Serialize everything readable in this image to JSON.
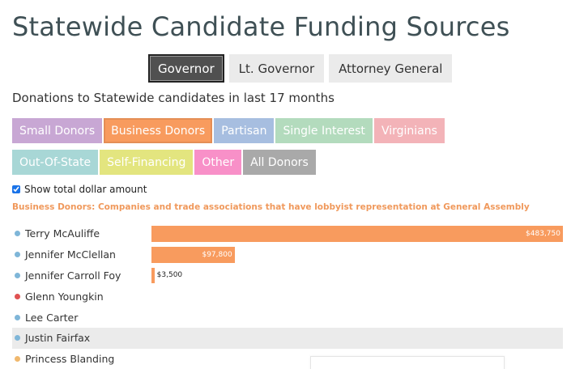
{
  "page": {
    "title": "Statewide Candidate Funding Sources",
    "subtitle": "Donations to Statewide candidates in last 17 months"
  },
  "tabs": [
    {
      "label": "Governor",
      "active": true
    },
    {
      "label": "Lt. Governor",
      "active": false
    },
    {
      "label": "Attorney General",
      "active": false
    }
  ],
  "categories": [
    {
      "label": "Small Donors",
      "color": "#c8a7d4",
      "active": false
    },
    {
      "label": "Business Donors",
      "color": "#f89b5e",
      "active": true
    },
    {
      "label": "Partisan",
      "color": "#a7bee0",
      "active": false
    },
    {
      "label": "Single Interest",
      "color": "#b3dbbd",
      "active": false
    },
    {
      "label": "Virginians",
      "color": "#f3b3b8",
      "active": false
    },
    {
      "label": "Out-Of-State",
      "color": "#a8d7d6",
      "active": false
    },
    {
      "label": "Self-Financing",
      "color": "#e3e57f",
      "active": false
    },
    {
      "label": "Other",
      "color": "#f890c8",
      "active": false
    },
    {
      "label": "All Donors",
      "color": "#a9a9a9",
      "active": false
    }
  ],
  "options": {
    "show_total_label": "Show total dollar amount",
    "show_total_checked": true
  },
  "category_description": "Business Donors: Companies and trade associations that have lobbyist representation at General Assembly",
  "chart_data": {
    "type": "bar",
    "orientation": "horizontal",
    "xlim": [
      0,
      483750
    ],
    "bar_color": "#f89b5e",
    "candidates": [
      {
        "name": "Terry McAuliffe",
        "value": 483750,
        "label": "$483,750",
        "party_color": "#7fb6d8",
        "highlight": false
      },
      {
        "name": "Jennifer McClellan",
        "value": 97800,
        "label": "$97,800",
        "party_color": "#7fb6d8",
        "highlight": false
      },
      {
        "name": "Jennifer Carroll Foy",
        "value": 3500,
        "label": "$3,500",
        "party_color": "#7fb6d8",
        "highlight": false
      },
      {
        "name": "Glenn Youngkin",
        "value": 0,
        "label": "",
        "party_color": "#e05252",
        "highlight": false
      },
      {
        "name": "Lee Carter",
        "value": 0,
        "label": "",
        "party_color": "#7fb6d8",
        "highlight": false
      },
      {
        "name": "Justin Fairfax",
        "value": 0,
        "label": "",
        "party_color": "#7fb6d8",
        "highlight": true
      },
      {
        "name": "Princess Blanding",
        "value": 0,
        "label": "",
        "party_color": "#f0b86e",
        "highlight": false
      }
    ]
  }
}
